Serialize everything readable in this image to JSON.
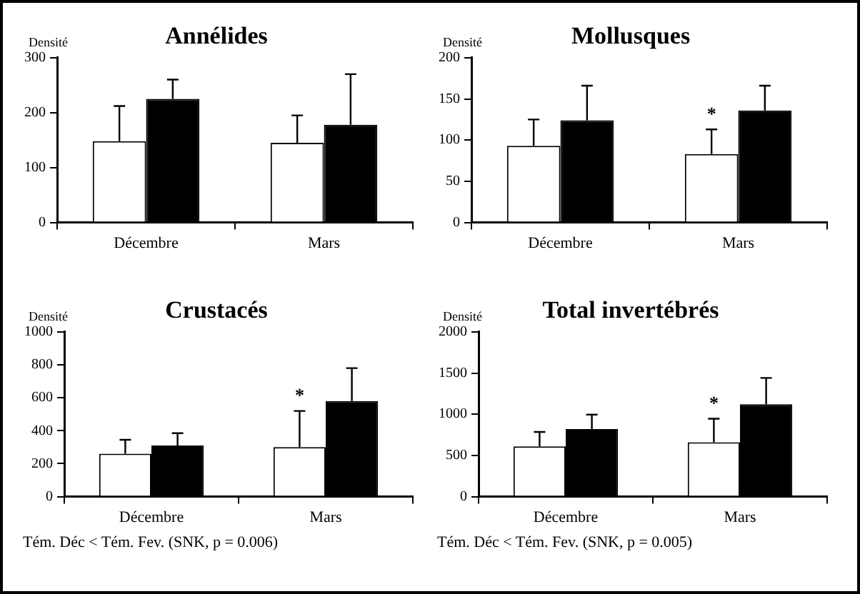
{
  "chart_data": [
    {
      "type": "bar",
      "title": "Annélides",
      "ylabel": "Densité",
      "categories": [
        "Décembre",
        "Mars"
      ],
      "series": [
        {
          "color": "#ffffff",
          "values": [
            148,
            145
          ],
          "errors": [
            [
              148,
              212
            ],
            [
              145,
              195
            ]
          ]
        },
        {
          "color": "#000000",
          "values": [
            225,
            178
          ],
          "errors": [
            [
              225,
              260
            ],
            [
              178,
              270
            ]
          ]
        }
      ],
      "ylim": [
        0,
        300
      ],
      "yticks": [
        0,
        100,
        200,
        300
      ],
      "grid": false,
      "legend": false
    },
    {
      "type": "bar",
      "title": "Mollusques",
      "ylabel": "Densité",
      "categories": [
        "Décembre",
        "Mars"
      ],
      "series": [
        {
          "color": "#ffffff",
          "values": [
            93,
            83
          ],
          "errors": [
            [
              93,
              125
            ],
            [
              83,
              113
            ]
          ],
          "value_labels": [
            null,
            "*"
          ]
        },
        {
          "color": "#000000",
          "values": [
            124,
            136
          ],
          "errors": [
            [
              124,
              166
            ],
            [
              136,
              166
            ]
          ]
        }
      ],
      "ylim": [
        0,
        200
      ],
      "yticks": [
        0,
        50,
        100,
        150,
        200
      ],
      "grid": false,
      "legend": false
    },
    {
      "type": "bar",
      "title": "Crustacés",
      "ylabel": "Densité",
      "categories": [
        "Décembre",
        "Mars"
      ],
      "series": [
        {
          "color": "#ffffff",
          "values": [
            260,
            300
          ],
          "errors": [
            [
              260,
              345
            ],
            [
              300,
              520
            ]
          ],
          "value_labels": [
            null,
            "*"
          ]
        },
        {
          "color": "#000000",
          "values": [
            310,
            580
          ],
          "errors": [
            [
              310,
              385
            ],
            [
              580,
              780
            ]
          ]
        }
      ],
      "annotations": [
        "Tém. Déc < Tém. Fev. (SNK, p = 0.006)"
      ],
      "ylim": [
        0,
        1000
      ],
      "yticks": [
        0,
        200,
        400,
        600,
        800,
        1000
      ],
      "grid": false,
      "legend": false
    },
    {
      "type": "bar",
      "title": "Total invertébrés",
      "ylabel": "Densité",
      "categories": [
        "Décembre",
        "Mars"
      ],
      "series": [
        {
          "color": "#ffffff",
          "values": [
            610,
            660
          ],
          "errors": [
            [
              610,
              785
            ],
            [
              660,
              945
            ]
          ],
          "value_labels": [
            null,
            "*"
          ]
        },
        {
          "color": "#000000",
          "values": [
            820,
            1120
          ],
          "errors": [
            [
              820,
              995
            ],
            [
              1120,
              1440
            ]
          ]
        }
      ],
      "annotations": [
        "Tém. Déc < Tém. Fev. (SNK, p = 0.005)"
      ],
      "ylim": [
        0,
        2000
      ],
      "yticks": [
        0,
        500,
        1000,
        1500,
        2000
      ],
      "grid": false,
      "legend": false
    }
  ]
}
